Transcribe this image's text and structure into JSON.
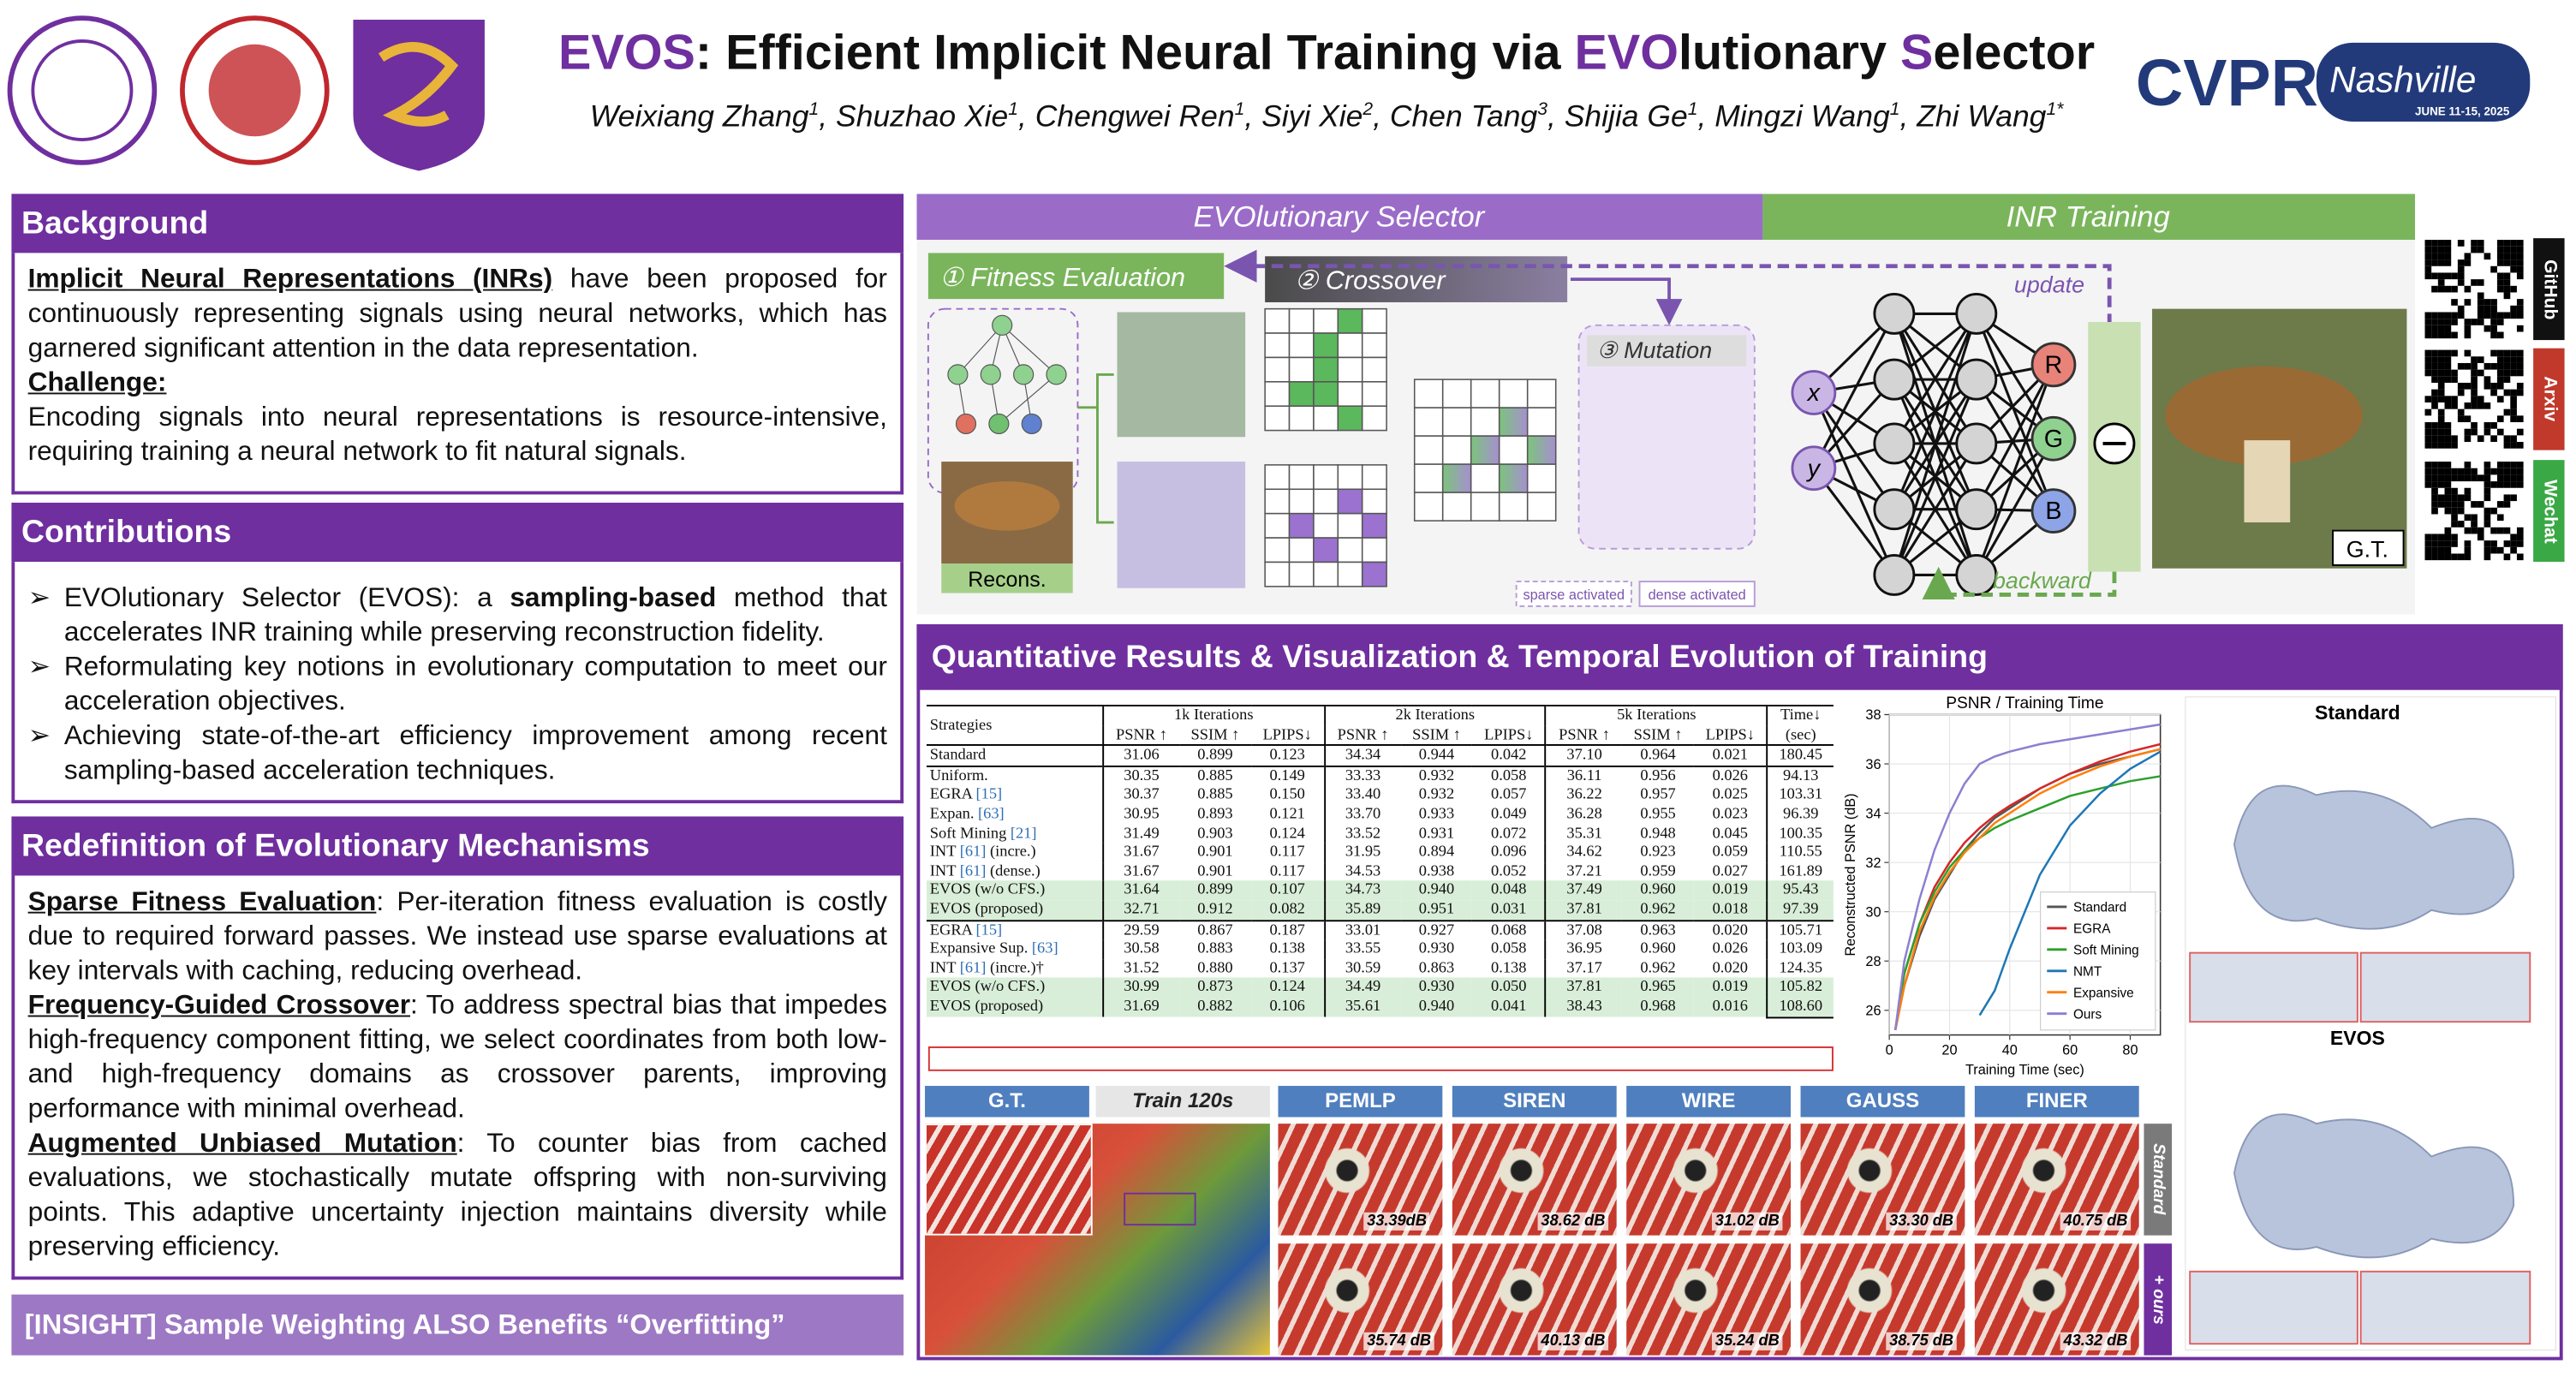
{
  "header": {
    "title": [
      "EVOS",
      ": Efficient Implicit Neural Training via ",
      "EVO",
      "lutionary ",
      "S",
      "elector"
    ],
    "authors": [
      {
        "name": "Weixiang Zhang",
        "sup": "1"
      },
      {
        "name": "Shuzhao Xie",
        "sup": "1"
      },
      {
        "name": "Chengwei Ren",
        "sup": "1"
      },
      {
        "name": "Siyi Xie",
        "sup": "2"
      },
      {
        "name": "Chen Tang",
        "sup": "3"
      },
      {
        "name": "Shijia Ge",
        "sup": "1"
      },
      {
        "name": "Mingzi Wang",
        "sup": "1"
      },
      {
        "name": "Zhi Wang",
        "sup": "1*"
      }
    ],
    "conference": "CVPR",
    "city": "Nashville",
    "dates": "JUNE 11-15, 2025"
  },
  "sections": {
    "background": {
      "heading": "Background",
      "items": [
        {
          "lead": "Implicit Neural Representations (INRs)",
          "text": " have been proposed for continuously representing signals using neural networks, which has garnered significant attention in the data representation."
        },
        {
          "lead": "Challenge:",
          "text": "Encoding signals into neural representations is resource-intensive, requiring training a neural network to fit natural signals."
        }
      ]
    },
    "contributions": {
      "heading": "Contributions",
      "bullets": [
        [
          "EVOlutionary Selector (EVOS): a ",
          "sampling-based",
          " method that accelerates INR training while preserving reconstruction fidelity."
        ],
        [
          "Reformulating key notions in evolutionary computation to meet our acceleration objectives."
        ],
        [
          "Achieving state-of-the-art efficiency improvement among recent sampling-based acceleration techniques."
        ]
      ]
    },
    "redefinition": {
      "heading": "Redefinition of Evolutionary Mechanisms",
      "items": [
        {
          "lead": "Sparse Fitness Evaluation",
          "text": ": Per-iteration fitness evaluation is costly due to required forward passes. We instead use sparse evaluations at key intervals with caching, reducing overhead."
        },
        {
          "lead": "Frequency-Guided Crossover",
          "text": ": To address spectral bias that impedes high-frequency component fitting, we select coordinates from both low- and high-frequency domains as crossover parents, improving performance with minimal overhead."
        },
        {
          "lead": "Augmented Unbiased Mutation",
          "text": ": To counter bias from cached evaluations, we stochastically mutate offspring with non-surviving points. This adaptive uncertainty injection maintains diversity while preserving efficiency."
        }
      ]
    },
    "insight": "[INSIGHT] Sample Weighting ALSO Benefits “Overfitting”"
  },
  "diagram": {
    "stage_selector": "EVOlutionary Selector",
    "stage_training": "INR Training",
    "fitness": "① Fitness Evaluation",
    "crossover": "② Crossover",
    "mutation": "③ Mutation",
    "recons": "Recons.",
    "update": "update",
    "backward": "backward",
    "inputs": [
      "x",
      "y"
    ],
    "outputs": [
      "R",
      "G",
      "B"
    ],
    "gt": "G.T.",
    "legend": [
      "sparse activated",
      "dense activated"
    ],
    "links": [
      "GitHub",
      "Arxiv",
      "Wechat"
    ]
  },
  "results": {
    "heading": "Quantitative Results & Visualization & Temporal Evolution of Training",
    "table": {
      "strategies": "Strategies",
      "groups": [
        "1k Iterations",
        "2k Iterations",
        "5k Iterations"
      ],
      "metrics": [
        "PSNR ↑",
        "SSIM ↑",
        "LPIPS↓"
      ],
      "time": "Time↓",
      "time_unit": "(sec)",
      "blocks": [
        [
          {
            "name": "Standard",
            "cells": [
              "31.06",
              "0.899",
              "0.123",
              "34.34",
              "0.944",
              "0.042",
              "37.10",
              "0.964",
              "0.021",
              "180.45"
            ]
          }
        ],
        [
          {
            "name": "Uniform.",
            "cells": [
              "30.35",
              "0.885",
              "0.149",
              "33.33",
              "0.932",
              "0.058",
              "36.11",
              "0.956",
              "0.026",
              "94.13"
            ]
          },
          {
            "name": "EGRA ",
            "ref": "[15]",
            "cells": [
              "30.37",
              "0.885",
              "0.150",
              "33.40",
              "0.932",
              "0.057",
              "36.22",
              "0.957",
              "0.025",
              "103.31"
            ]
          },
          {
            "name": "Expan. ",
            "ref": "[63]",
            "cells": [
              "30.95",
              "0.893",
              "0.121",
              "33.70",
              "0.933",
              "0.049",
              "36.28",
              "0.955",
              "0.023",
              "96.39"
            ]
          },
          {
            "name": "Soft Mining ",
            "ref": "[21]",
            "cells": [
              "31.49",
              "0.903",
              "0.124",
              "33.52",
              "0.931",
              "0.072",
              "35.31",
              "0.948",
              "0.045",
              "100.35"
            ]
          },
          {
            "name": "INT ",
            "ref": "[61]",
            "suffix": " (incre.)",
            "cells": [
              "31.67",
              "0.901",
              "0.117",
              "31.95",
              "0.894",
              "0.096",
              "34.62",
              "0.923",
              "0.059",
              "110.55"
            ]
          },
          {
            "name": "INT ",
            "ref": "[61]",
            "suffix": " (dense.)",
            "cells": [
              "31.67",
              "0.901",
              "0.117",
              "34.53",
              "0.938",
              "0.052",
              "37.21",
              "0.959",
              "0.027",
              "161.89"
            ]
          },
          {
            "name": "EVOS (w/o CFS.)",
            "cells": [
              "31.64",
              "0.899",
              "0.107",
              "34.73",
              "0.940",
              "0.048",
              "37.49",
              "0.960",
              "0.019",
              "95.43"
            ]
          },
          {
            "name": "EVOS (proposed)",
            "cells": [
              "32.71",
              "0.912",
              "0.082",
              "35.89",
              "0.951",
              "0.031",
              "37.81",
              "0.962",
              "0.018",
              "97.39"
            ]
          }
        ],
        [
          {
            "name": "EGRA ",
            "ref": "[15]",
            "cells": [
              "29.59",
              "0.867",
              "0.187",
              "33.01",
              "0.927",
              "0.068",
              "37.08",
              "0.963",
              "0.020",
              "105.71"
            ]
          },
          {
            "name": "Expansive Sup. ",
            "ref": "[63]",
            "cells": [
              "30.58",
              "0.883",
              "0.138",
              "33.55",
              "0.930",
              "0.058",
              "36.95",
              "0.960",
              "0.026",
              "103.09"
            ]
          },
          {
            "name": "INT ",
            "ref": "[61]",
            "suffix": " (incre.)†",
            "cells": [
              "31.52",
              "0.880",
              "0.137",
              "30.59",
              "0.863",
              "0.138",
              "37.17",
              "0.962",
              "0.020",
              "124.35"
            ]
          },
          {
            "name": "EVOS (w/o CFS.)",
            "cells": [
              "30.99",
              "0.873",
              "0.124",
              "34.49",
              "0.930",
              "0.050",
              "37.81",
              "0.965",
              "0.019",
              "105.82"
            ]
          },
          {
            "name": "EVOS (proposed)",
            "cells": [
              "31.69",
              "0.882",
              "0.106",
              "35.61",
              "0.940",
              "0.041",
              "38.43",
              "0.968",
              "0.016",
              "108.60"
            ]
          }
        ]
      ]
    },
    "images": {
      "gt": "G.T.",
      "train": "Train 120s",
      "methods": [
        "PEMLP",
        "SIREN",
        "WIRE",
        "GAUSS",
        "FINER"
      ],
      "rows": [
        "Standard",
        "+ ours"
      ],
      "psnr": [
        [
          "33.39dB",
          "38.62 dB",
          "31.02 dB",
          "33.30 dB",
          "40.75 dB"
        ],
        [
          "35.74 dB",
          "40.13 dB",
          "35.24 dB",
          "38.75 dB",
          "43.32 dB"
        ]
      ]
    },
    "meshes": [
      "Standard",
      "EVOS"
    ]
  },
  "chart_data": {
    "type": "line",
    "title": "PSNR / Training Time",
    "x_label": "Training Time (sec)",
    "y_label": "Reconstructed PSNR (dB)",
    "x": [
      2,
      5,
      10,
      15,
      20,
      25,
      30,
      35,
      40,
      50,
      60,
      70,
      80,
      90
    ],
    "xlim": [
      0,
      90
    ],
    "xticks": [
      0,
      20,
      40,
      60,
      80
    ],
    "ylim": [
      25,
      38
    ],
    "yticks": [
      26,
      28,
      30,
      32,
      34,
      36,
      38
    ],
    "grid": true,
    "legend": "lower right",
    "series": [
      {
        "name": "Standard",
        "color": "#555555",
        "values": [
          25.2,
          27,
          29,
          30.5,
          31.5,
          32.5,
          33.2,
          33.8,
          34.2,
          35,
          35.6,
          36,
          36.3,
          36.6
        ]
      },
      {
        "name": "EGRA",
        "color": "#d62728",
        "values": [
          25.2,
          27.5,
          29.5,
          31,
          32,
          32.8,
          33.4,
          33.9,
          34.3,
          35,
          35.6,
          36.1,
          36.5,
          36.8
        ]
      },
      {
        "name": "Soft Mining",
        "color": "#2ca02c",
        "values": [
          25.2,
          27.5,
          29.5,
          30.8,
          31.8,
          32.5,
          33,
          33.4,
          33.7,
          34.2,
          34.7,
          35,
          35.3,
          35.5
        ]
      },
      {
        "name": "NMT",
        "color": "#1f77b4",
        "values": [
          null,
          null,
          null,
          null,
          null,
          null,
          25.8,
          26.8,
          28.5,
          31.5,
          33.5,
          34.8,
          35.8,
          36.5
        ]
      },
      {
        "name": "Expansive",
        "color": "#ff7f0e",
        "values": [
          25.2,
          27,
          29.2,
          30.6,
          31.6,
          32.4,
          33,
          33.6,
          34,
          34.8,
          35.4,
          35.9,
          36.3,
          36.6
        ]
      },
      {
        "name": "Ours",
        "color": "#8c7fd0",
        "values": [
          25.2,
          28,
          30.5,
          32.5,
          34,
          35.2,
          36,
          36.3,
          36.5,
          36.8,
          37,
          37.2,
          37.4,
          37.6
        ]
      }
    ]
  }
}
